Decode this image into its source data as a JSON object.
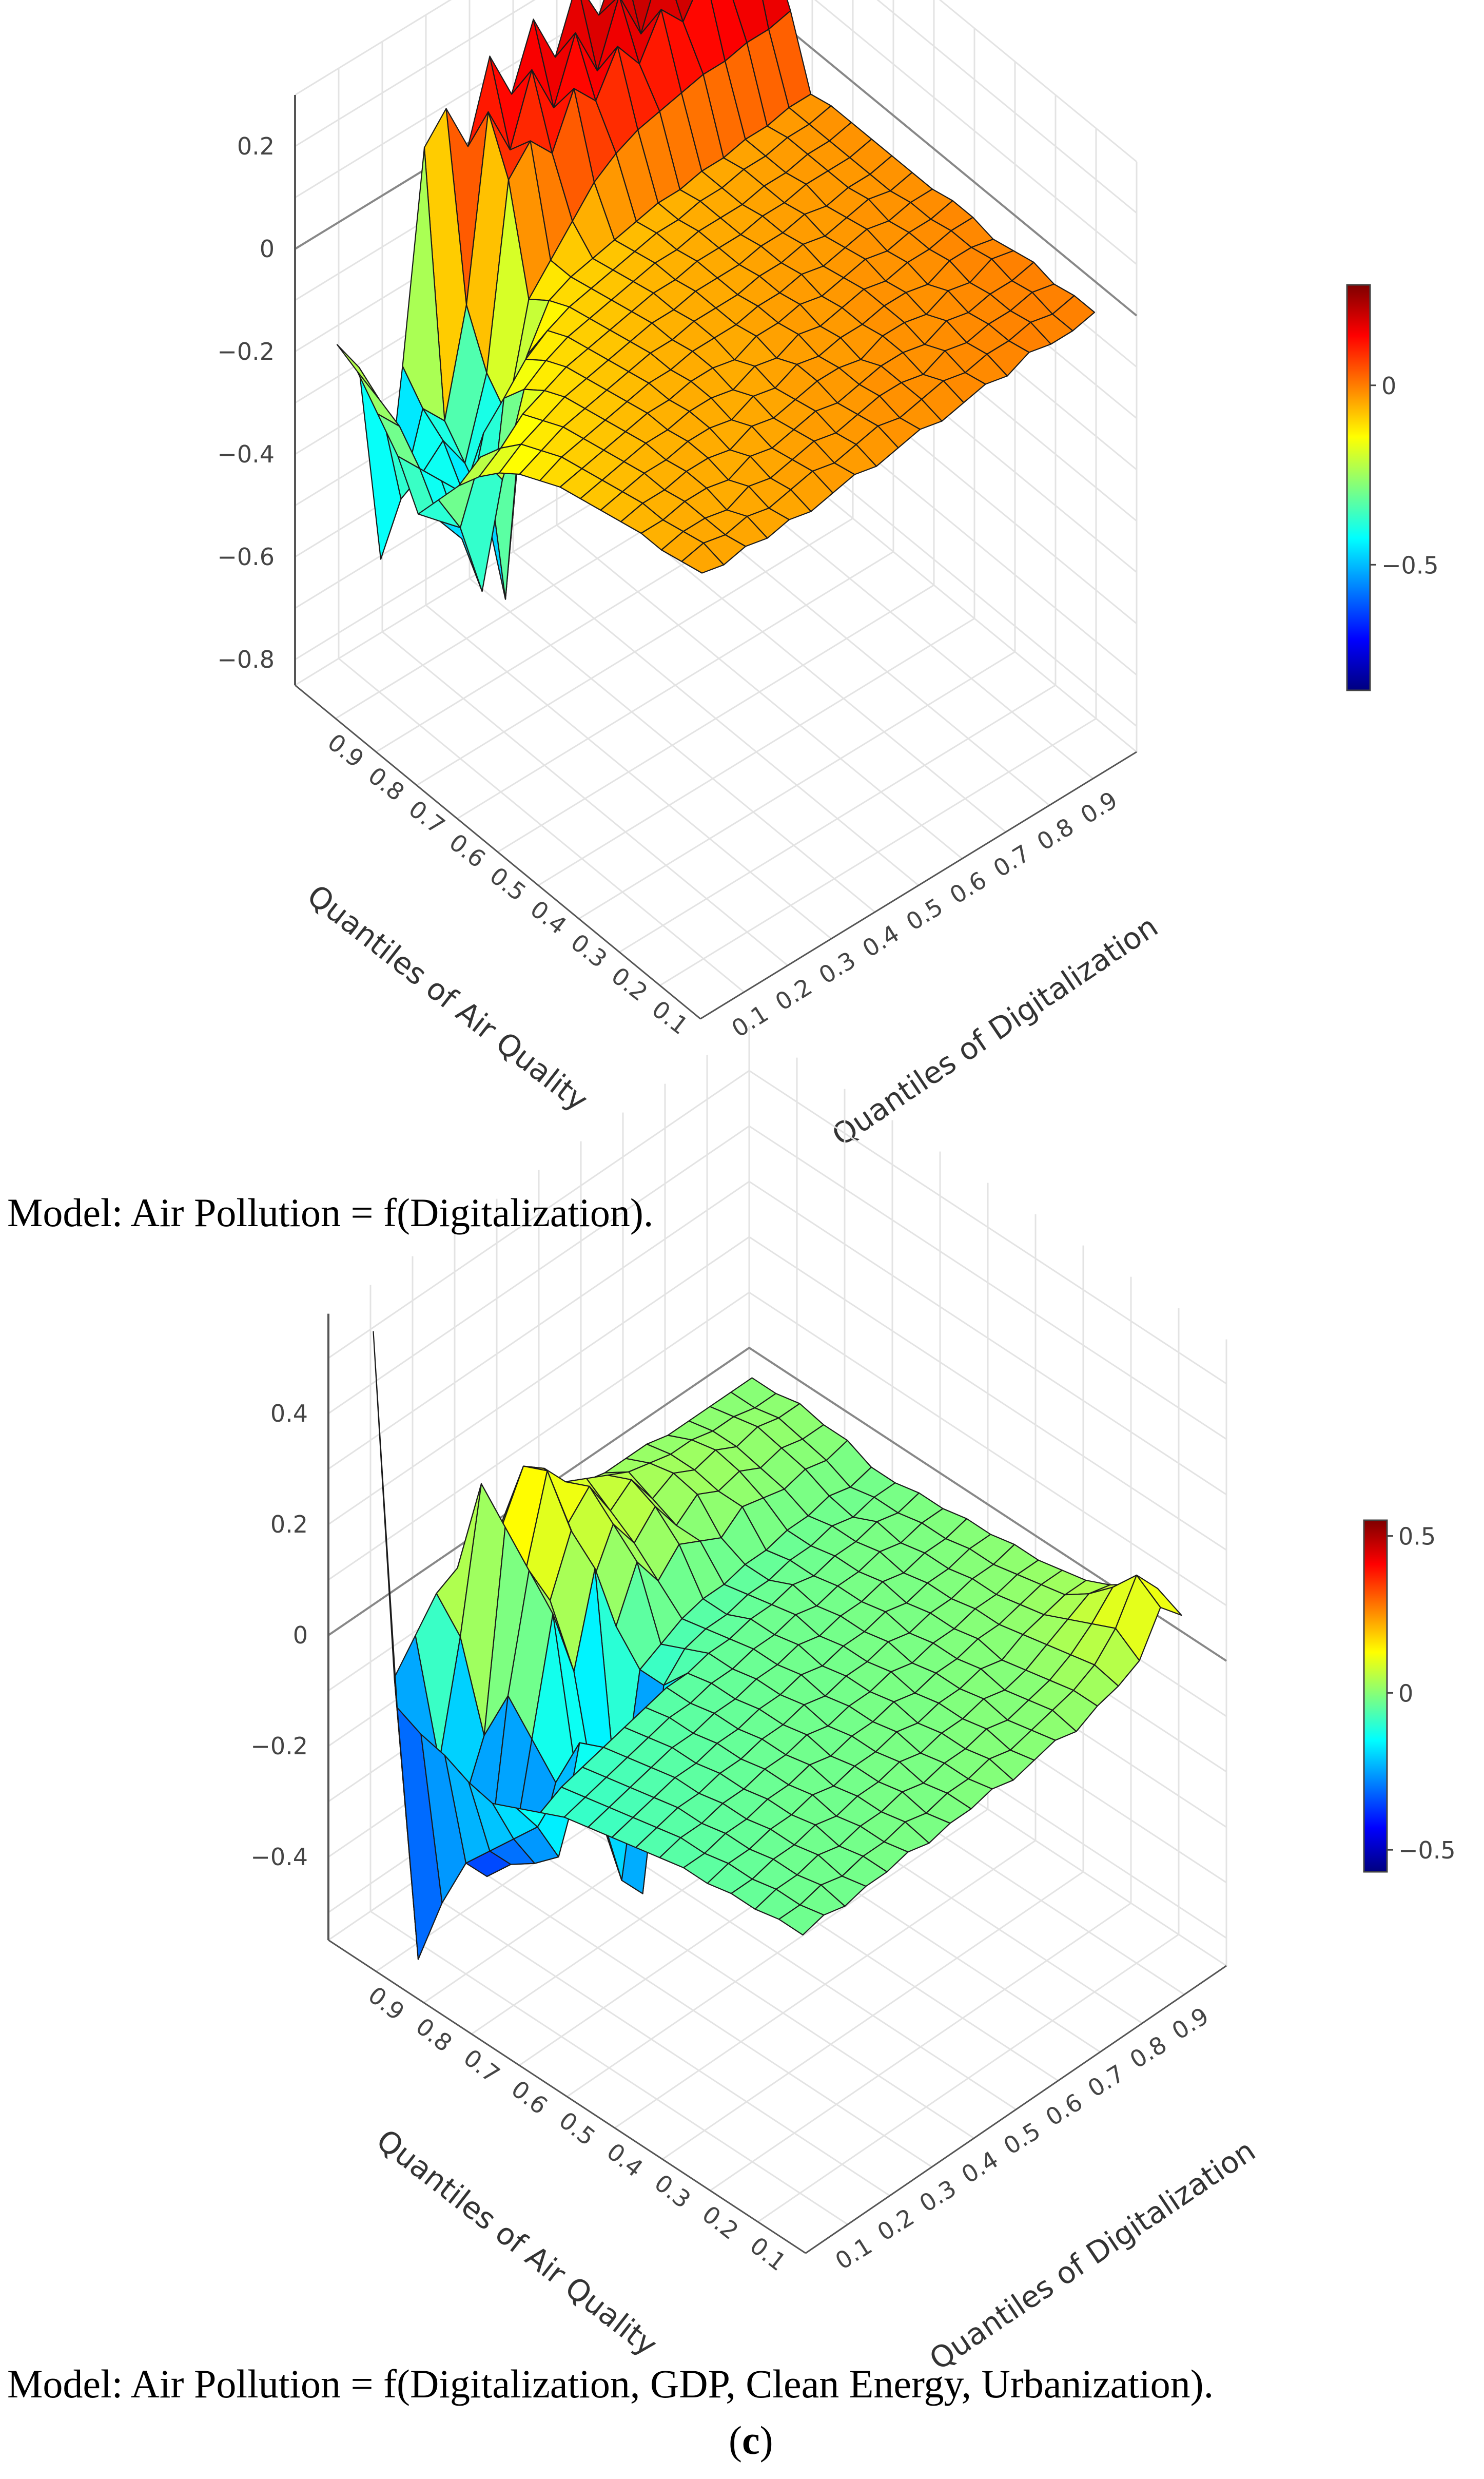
{
  "colors": {
    "jet": [
      "#00007f",
      "#0000ff",
      "#007fff",
      "#00ffff",
      "#7fff7f",
      "#ffff00",
      "#ff7f00",
      "#ff0000",
      "#7f0000"
    ],
    "grid": "#e3e3e3",
    "axis": "#555555",
    "tick_text": "#444444"
  },
  "captions": {
    "model_1": "Model: Air Pollution = f(Digitalization).",
    "model_2": "Model: Air Pollution = f(Digitalization, GDP, Clean Energy, Urbanization).",
    "panel_open": "(",
    "panel_letter": "c",
    "panel_close": ")"
  },
  "chart_data": [
    {
      "type": "surface",
      "caption": "Model: Air Pollution = f(Digitalization).",
      "x_axis_label": "Quantiles of Digitalization",
      "y_axis_label": "Quantiles of Air Quality",
      "z_ticks": [
        "0.2",
        "0",
        "−0.2",
        "−0.4",
        "−0.6",
        "−0.8"
      ],
      "z_tick_values": [
        0.2,
        0,
        -0.2,
        -0.4,
        -0.6,
        -0.8
      ],
      "x_ticks": [
        "0.1",
        "0.2",
        "0.3",
        "0.4",
        "0.5",
        "0.6",
        "0.7",
        "0.8",
        "0.9"
      ],
      "y_ticks": [
        "0.9",
        "0.8",
        "0.7",
        "0.6",
        "0.5",
        "0.4",
        "0.3",
        "0.2",
        "0.1"
      ],
      "zlim": [
        -0.85,
        0.3
      ],
      "colorbar": {
        "range": [
          -0.85,
          0.28
        ],
        "ticks": [
          "0",
          "−0.5"
        ],
        "tick_values": [
          0,
          -0.5
        ]
      },
      "grid": true,
      "quantiles": [
        0.05,
        0.1,
        0.15,
        0.2,
        0.25,
        0.3,
        0.35,
        0.4,
        0.45,
        0.5,
        0.55,
        0.6,
        0.65,
        0.7,
        0.75,
        0.8,
        0.85,
        0.9,
        0.95
      ],
      "rows_by_air_quality_quantile_note_order": "rows: air quality 0.05→0.95, columns: digitalization 0.05→0.95",
      "z": [
        [
          -0.04,
          -0.05,
          -0.04,
          -0.05,
          -0.04,
          -0.05,
          -0.04,
          -0.03,
          -0.04,
          -0.03,
          -0.02,
          -0.03,
          -0.02,
          -0.01,
          -0.02,
          0.0,
          -0.01,
          -0.01,
          0.0
        ],
        [
          -0.05,
          -0.04,
          -0.05,
          -0.04,
          -0.05,
          -0.04,
          -0.03,
          -0.04,
          -0.03,
          -0.02,
          -0.03,
          -0.02,
          -0.01,
          -0.02,
          -0.01,
          -0.01,
          0.0,
          -0.01,
          0.0
        ],
        [
          -0.06,
          -0.05,
          -0.05,
          -0.06,
          -0.04,
          -0.05,
          -0.04,
          -0.03,
          -0.04,
          -0.03,
          -0.02,
          -0.02,
          -0.03,
          -0.01,
          -0.02,
          -0.01,
          -0.01,
          0.0,
          -0.01
        ],
        [
          -0.06,
          -0.06,
          -0.05,
          -0.05,
          -0.06,
          -0.04,
          -0.05,
          -0.04,
          -0.03,
          -0.04,
          -0.03,
          -0.02,
          -0.02,
          -0.03,
          -0.01,
          -0.02,
          -0.01,
          -0.01,
          0.0
        ],
        [
          -0.07,
          -0.06,
          -0.06,
          -0.05,
          -0.05,
          -0.06,
          -0.04,
          -0.05,
          -0.04,
          -0.03,
          -0.03,
          -0.04,
          -0.02,
          -0.02,
          -0.03,
          -0.01,
          -0.02,
          0.0,
          -0.01
        ],
        [
          -0.08,
          -0.07,
          -0.06,
          -0.06,
          -0.05,
          -0.05,
          -0.06,
          -0.04,
          -0.05,
          -0.03,
          -0.04,
          -0.03,
          -0.03,
          -0.02,
          -0.02,
          -0.03,
          -0.01,
          -0.01,
          -0.02
        ],
        [
          -0.09,
          -0.08,
          -0.07,
          -0.06,
          -0.06,
          -0.05,
          -0.05,
          -0.06,
          -0.04,
          -0.05,
          -0.03,
          -0.04,
          -0.03,
          -0.02,
          -0.03,
          -0.02,
          -0.02,
          -0.01,
          -0.01
        ],
        [
          -0.1,
          -0.09,
          -0.08,
          -0.07,
          -0.06,
          -0.06,
          -0.05,
          -0.05,
          -0.06,
          -0.04,
          -0.04,
          -0.03,
          -0.04,
          -0.03,
          -0.02,
          -0.03,
          -0.02,
          -0.02,
          -0.01
        ],
        [
          -0.12,
          -0.1,
          -0.09,
          -0.08,
          -0.07,
          -0.06,
          -0.06,
          -0.05,
          -0.05,
          -0.05,
          -0.04,
          -0.04,
          -0.03,
          -0.04,
          -0.03,
          -0.02,
          -0.03,
          -0.02,
          -0.02
        ],
        [
          -0.14,
          -0.12,
          -0.1,
          -0.09,
          -0.08,
          -0.07,
          -0.06,
          -0.06,
          -0.05,
          -0.05,
          -0.05,
          -0.04,
          -0.04,
          -0.03,
          -0.04,
          -0.03,
          -0.02,
          -0.03,
          -0.02
        ],
        [
          -0.17,
          -0.14,
          -0.12,
          -0.1,
          -0.09,
          -0.08,
          -0.07,
          -0.06,
          -0.06,
          -0.05,
          -0.05,
          -0.05,
          -0.04,
          -0.04,
          -0.03,
          -0.04,
          -0.03,
          -0.03,
          -0.02
        ],
        [
          -0.21,
          -0.18,
          -0.14,
          -0.12,
          -0.1,
          -0.09,
          -0.08,
          -0.07,
          -0.06,
          -0.06,
          -0.05,
          -0.05,
          -0.05,
          -0.04,
          -0.04,
          -0.03,
          -0.03,
          -0.03,
          -0.02
        ],
        [
          -0.26,
          -0.23,
          -0.3,
          -0.15,
          -0.12,
          -0.1,
          -0.09,
          -0.08,
          -0.07,
          -0.06,
          -0.06,
          -0.05,
          -0.05,
          -0.05,
          -0.04,
          -0.04,
          -0.03,
          -0.03,
          -0.02
        ],
        [
          -0.32,
          -0.4,
          -0.55,
          -0.2,
          -0.15,
          -0.12,
          -0.1,
          -0.09,
          -0.08,
          -0.07,
          -0.06,
          -0.06,
          -0.05,
          -0.05,
          -0.04,
          -0.04,
          -0.03,
          -0.03,
          -0.02
        ],
        [
          -0.38,
          -0.42,
          -0.48,
          -0.3,
          -0.65,
          -0.2,
          -0.12,
          -0.1,
          -0.09,
          -0.08,
          -0.07,
          -0.06,
          -0.06,
          -0.05,
          -0.05,
          -0.04,
          -0.04,
          -0.03,
          -0.03
        ],
        [
          -0.3,
          -0.35,
          -0.4,
          -0.45,
          -0.5,
          -0.35,
          -0.15,
          -0.1,
          -0.05,
          0.0,
          0.03,
          0.05,
          0.06,
          0.07,
          0.08,
          0.08,
          0.09,
          0.09,
          0.1
        ],
        [
          -0.25,
          -0.3,
          -0.42,
          -0.38,
          -0.45,
          -0.3,
          0.05,
          0.1,
          0.05,
          0.15,
          0.1,
          0.18,
          0.12,
          0.2,
          0.15,
          0.22,
          0.18,
          0.25,
          0.2
        ],
        [
          -0.2,
          -0.28,
          -0.5,
          -0.35,
          -0.4,
          -0.2,
          0.15,
          0.05,
          0.18,
          0.08,
          0.2,
          0.1,
          0.22,
          0.12,
          0.24,
          0.15,
          0.26,
          0.28,
          0.22
        ],
        [
          -0.18,
          -0.25,
          -0.65,
          -0.3,
          0.1,
          0.15,
          0.05,
          0.2,
          0.1,
          0.22,
          0.12,
          0.24,
          0.15,
          0.25,
          0.18,
          0.26,
          0.2,
          0.28,
          0.25
        ]
      ]
    },
    {
      "type": "surface",
      "caption": "Model: Air Pollution = f(Digitalization, GDP, Clean Energy, Urbanization).",
      "x_axis_label": "Quantiles of Digitalization",
      "y_axis_label": "Quantiles of Air Quality",
      "z_ticks": [
        "0.4",
        "0.2",
        "0",
        "−0.2",
        "−0.4"
      ],
      "z_tick_values": [
        0.4,
        0.2,
        0,
        -0.2,
        -0.4
      ],
      "x_ticks": [
        "0.1",
        "0.2",
        "0.3",
        "0.4",
        "0.5",
        "0.6",
        "0.7",
        "0.8",
        "0.9"
      ],
      "y_ticks": [
        "0.9",
        "0.8",
        "0.7",
        "0.6",
        "0.5",
        "0.4",
        "0.3",
        "0.2",
        "0.1"
      ],
      "zlim": [
        -0.55,
        0.58
      ],
      "colorbar": {
        "range": [
          -0.57,
          0.55
        ],
        "ticks": [
          "0.5",
          "0",
          "−0.5"
        ],
        "tick_values": [
          0.5,
          0,
          -0.5
        ]
      },
      "grid": true,
      "quantiles": [
        0.05,
        0.1,
        0.15,
        0.2,
        0.25,
        0.3,
        0.35,
        0.4,
        0.45,
        0.5,
        0.55,
        0.6,
        0.65,
        0.7,
        0.75,
        0.8,
        0.85,
        0.9,
        0.95
      ],
      "rows_by_air_quality_quantile_note_order": "rows: air quality 0.05→0.95, columns: digitalization 0.05→0.95",
      "z": [
        [
          -0.03,
          -0.02,
          -0.03,
          -0.02,
          -0.02,
          -0.01,
          -0.02,
          -0.01,
          -0.01,
          0.0,
          -0.01,
          0.0,
          0.01,
          0.0,
          0.02,
          0.03,
          0.05,
          0.12,
          0.08
        ],
        [
          -0.03,
          -0.03,
          -0.02,
          -0.03,
          -0.02,
          -0.02,
          -0.01,
          -0.02,
          -0.01,
          -0.01,
          0.0,
          -0.01,
          0.0,
          0.01,
          0.02,
          0.04,
          0.08,
          0.15,
          0.1
        ],
        [
          -0.04,
          -0.03,
          -0.03,
          -0.02,
          -0.03,
          -0.02,
          -0.02,
          -0.01,
          -0.02,
          -0.01,
          -0.01,
          0.0,
          -0.01,
          0.0,
          0.01,
          0.03,
          0.06,
          0.1,
          0.08
        ],
        [
          -0.04,
          -0.04,
          -0.03,
          -0.03,
          -0.02,
          -0.03,
          -0.02,
          -0.02,
          -0.01,
          -0.02,
          -0.01,
          -0.01,
          0.0,
          -0.01,
          0.0,
          0.02,
          0.04,
          0.06,
          0.05
        ],
        [
          -0.05,
          -0.04,
          -0.04,
          -0.03,
          -0.03,
          -0.02,
          -0.03,
          -0.02,
          -0.02,
          -0.01,
          -0.02,
          -0.01,
          -0.01,
          0.0,
          -0.01,
          0.01,
          0.02,
          0.03,
          0.03
        ],
        [
          -0.05,
          -0.05,
          -0.04,
          -0.04,
          -0.03,
          -0.03,
          -0.02,
          -0.03,
          -0.02,
          -0.02,
          -0.01,
          -0.02,
          -0.01,
          -0.01,
          0.0,
          0.0,
          0.01,
          0.02,
          0.02
        ],
        [
          -0.06,
          -0.05,
          -0.05,
          -0.04,
          -0.04,
          -0.03,
          -0.03,
          -0.02,
          -0.03,
          -0.02,
          -0.02,
          -0.01,
          -0.02,
          -0.01,
          -0.01,
          0.0,
          0.0,
          0.01,
          0.01
        ],
        [
          -0.07,
          -0.06,
          -0.05,
          -0.05,
          -0.04,
          -0.04,
          -0.03,
          -0.03,
          -0.02,
          -0.03,
          -0.02,
          -0.02,
          -0.01,
          -0.02,
          -0.01,
          -0.01,
          0.0,
          0.0,
          0.01
        ],
        [
          -0.08,
          -0.07,
          -0.06,
          -0.05,
          -0.05,
          -0.04,
          -0.04,
          -0.03,
          -0.03,
          -0.02,
          -0.03,
          -0.02,
          -0.02,
          -0.01,
          -0.02,
          -0.01,
          -0.01,
          0.0,
          0.0
        ],
        [
          -0.09,
          -0.08,
          -0.07,
          -0.06,
          -0.05,
          -0.05,
          -0.04,
          -0.04,
          -0.03,
          -0.03,
          -0.02,
          -0.03,
          -0.02,
          -0.02,
          -0.01,
          -0.02,
          -0.01,
          -0.01,
          0.0
        ],
        [
          -0.1,
          -0.09,
          -0.08,
          -0.07,
          -0.06,
          -0.05,
          -0.05,
          -0.04,
          -0.04,
          -0.03,
          -0.03,
          -0.02,
          -0.03,
          -0.02,
          -0.02,
          -0.01,
          -0.02,
          -0.01,
          -0.01
        ],
        [
          -0.12,
          -0.1,
          -0.09,
          -0.08,
          -0.07,
          -0.06,
          -0.05,
          -0.05,
          -0.04,
          -0.04,
          -0.03,
          -0.03,
          -0.02,
          -0.03,
          -0.02,
          -0.02,
          -0.01,
          -0.02,
          -0.01
        ],
        [
          -0.14,
          -0.2,
          -0.28,
          -0.1,
          -0.25,
          -0.4,
          -0.45,
          -0.1,
          -0.06,
          -0.05,
          -0.05,
          -0.04,
          -0.04,
          -0.03,
          -0.03,
          -0.02,
          -0.03,
          -0.02,
          -0.02
        ],
        [
          -0.16,
          -0.25,
          -0.32,
          -0.2,
          -0.22,
          -0.3,
          -0.35,
          -0.1,
          -0.08,
          -0.06,
          -0.05,
          -0.05,
          -0.04,
          -0.04,
          -0.03,
          -0.03,
          -0.02,
          -0.03,
          -0.02
        ],
        [
          -0.15,
          -0.3,
          -0.35,
          -0.15,
          0.05,
          -0.08,
          0.08,
          -0.05,
          0.04,
          -0.02,
          0.02,
          0.0,
          -0.02,
          0.01,
          0.0,
          -0.01,
          0.0,
          -0.01,
          0.0
        ],
        [
          -0.13,
          -0.35,
          -0.4,
          -0.1,
          0.1,
          0.02,
          0.12,
          0.0,
          0.08,
          0.02,
          0.06,
          0.0,
          0.03,
          0.01,
          0.02,
          0.0,
          0.01,
          0.0,
          0.0
        ],
        [
          -0.12,
          -0.45,
          -0.3,
          -0.2,
          0.15,
          0.05,
          0.2,
          0.08,
          0.12,
          0.05,
          0.08,
          0.02,
          0.04,
          0.02,
          0.03,
          0.01,
          0.02,
          0.01,
          0.01
        ],
        [
          -0.1,
          -0.58,
          -0.25,
          -0.05,
          0.2,
          0.1,
          0.18,
          0.15,
          0.1,
          0.08,
          0.06,
          0.04,
          0.03,
          0.02,
          0.02,
          0.01,
          0.01,
          0.0,
          0.0
        ],
        [
          0.55,
          -0.1,
          -0.05,
          0.0,
          0.02,
          0.03,
          0.04,
          0.03,
          0.03,
          0.02,
          0.02,
          0.01,
          0.01,
          0.01,
          0.0,
          0.0,
          0.0,
          0.0,
          0.0
        ]
      ]
    }
  ]
}
